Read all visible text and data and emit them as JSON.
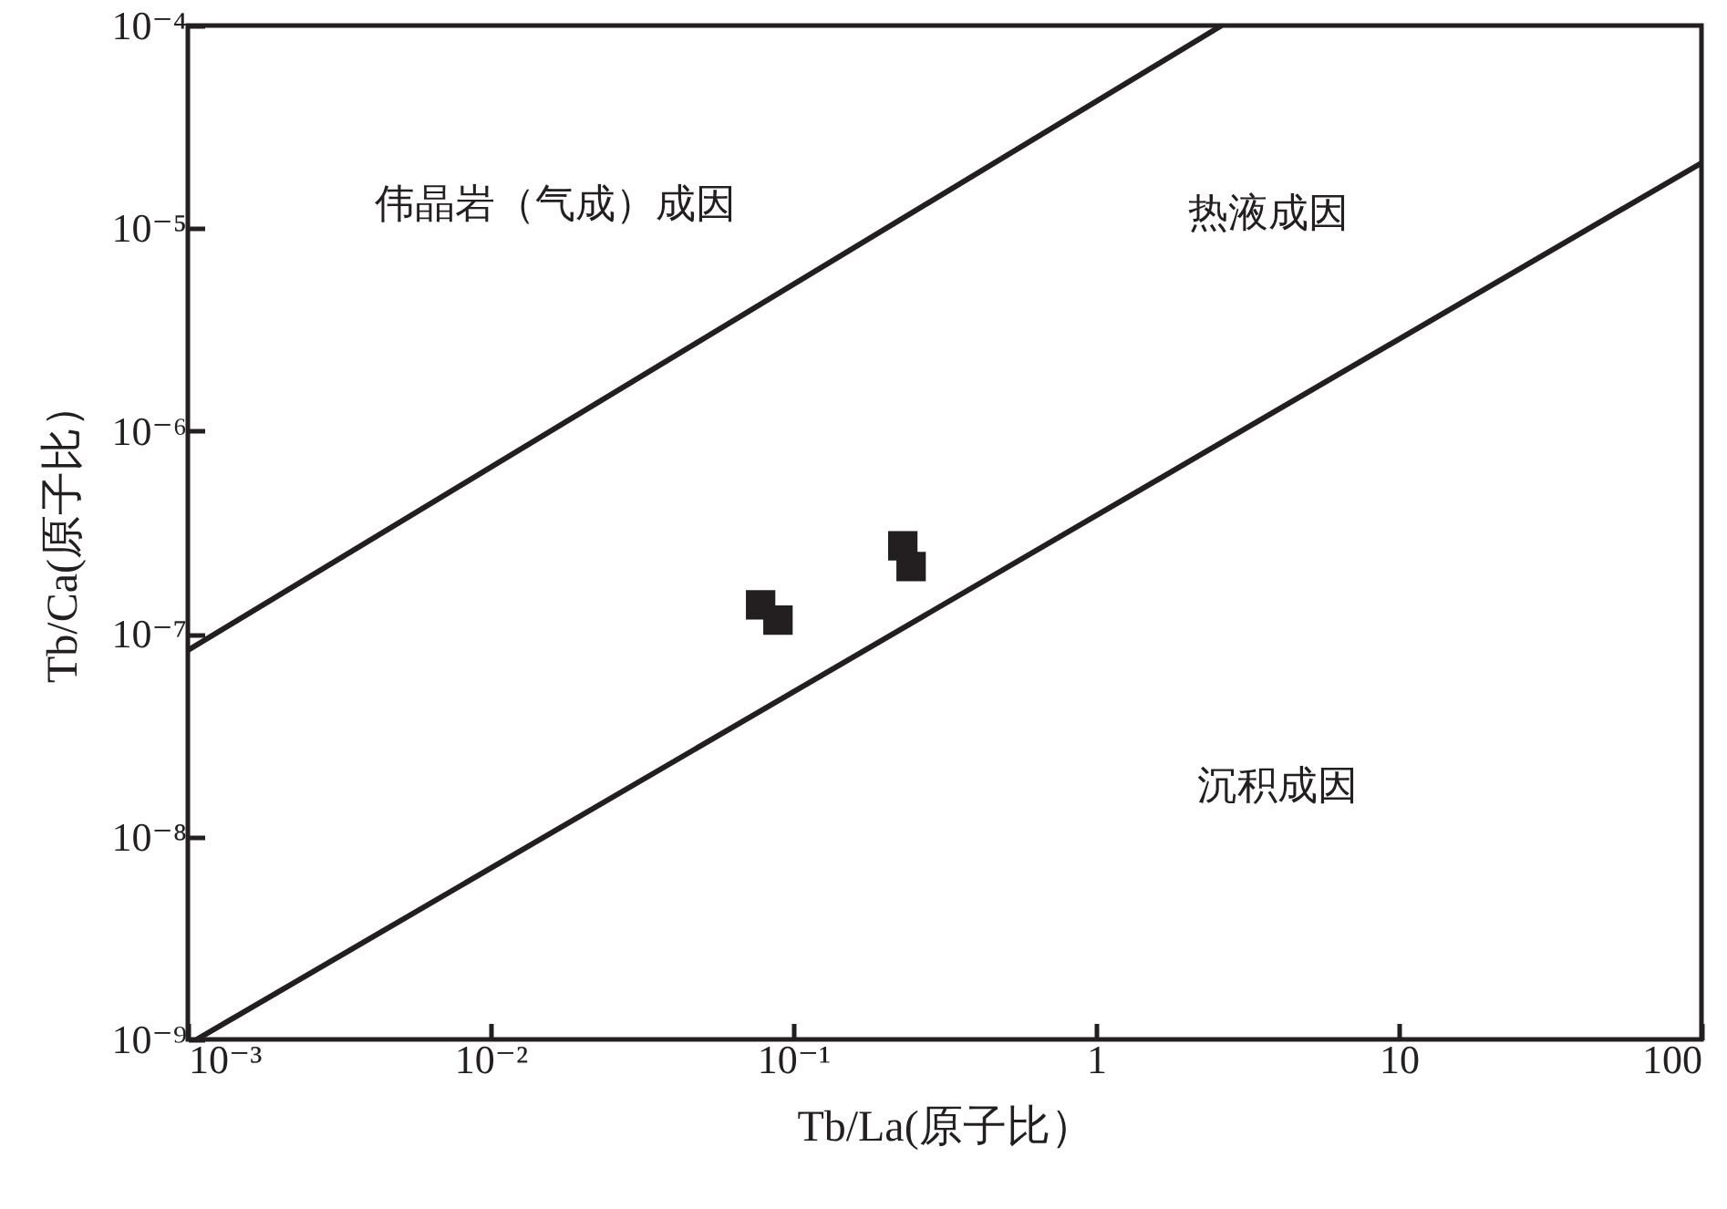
{
  "chart_data": {
    "type": "scatter",
    "xlabel": "Tb/La(原子比）",
    "ylabel": "Tb/Ca(原子比）",
    "log": "xy",
    "grid": false,
    "xlim": [
      0.001,
      100
    ],
    "ylim": [
      1e-09,
      0.0001
    ],
    "xticks": [
      {
        "value": 0.001,
        "label": "10⁻³"
      },
      {
        "value": 0.01,
        "label": "10⁻²"
      },
      {
        "value": 0.1,
        "label": "10⁻¹"
      },
      1,
      10,
      100
    ],
    "yticks": [
      {
        "value": 1e-09,
        "label": "10⁻⁹"
      },
      {
        "value": 1e-08,
        "label": "10⁻⁸"
      },
      {
        "value": 1e-07,
        "label": "10⁻⁷"
      },
      {
        "value": 1e-06,
        "label": "10⁻⁶"
      },
      {
        "value": 1e-05,
        "label": "10⁻⁵"
      },
      {
        "value": 0.0001,
        "label": "10⁻⁴"
      }
    ],
    "series": [
      {
        "type": "line",
        "color": "#231f20",
        "x": [
          0.001,
          2.6
        ],
        "values": [
          8.3e-08,
          0.0001
        ]
      },
      {
        "type": "line",
        "color": "#231f20",
        "x": [
          0.00107,
          100
        ],
        "values": [
          1e-09,
          2.1e-05
        ]
      },
      {
        "type": "scatter",
        "marker": "square",
        "color": "#231f20",
        "x": [
          0.078,
          0.089,
          0.23,
          0.245
        ],
        "values": [
          1.39e-07,
          1.17e-07,
          2.72e-07,
          2.15e-07
        ]
      }
    ],
    "annotations": [
      "伟晶岩（气成）成因",
      "热液成因",
      "沉积成因"
    ]
  }
}
